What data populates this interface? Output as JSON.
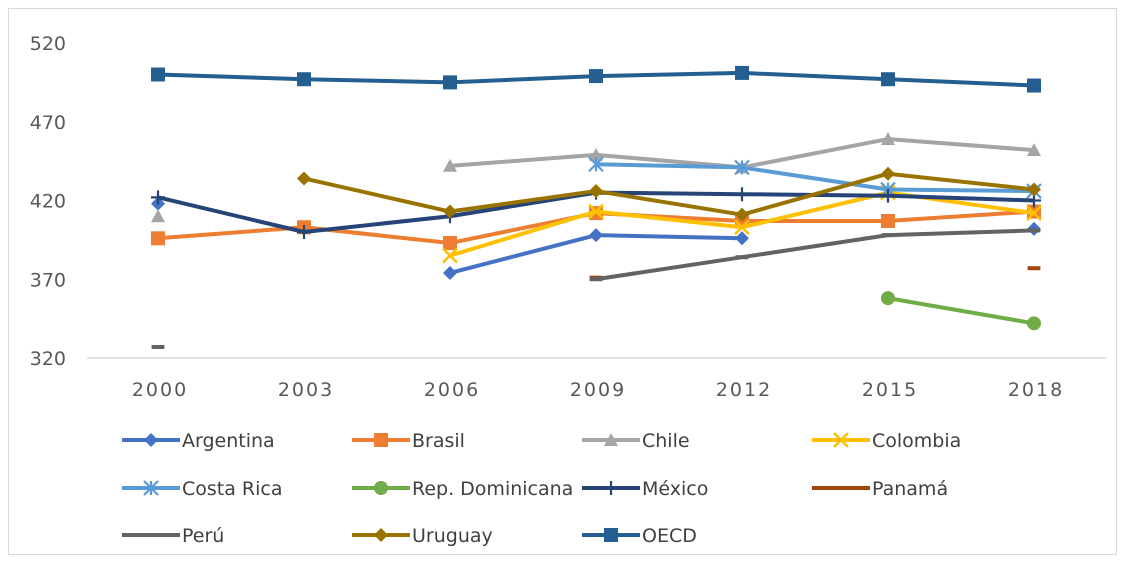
{
  "chart_data": {
    "type": "line",
    "title": "",
    "xlabel": "",
    "ylabel": "",
    "categories": [
      "2000",
      "2003",
      "2006",
      "2009",
      "2012",
      "2015",
      "2018"
    ],
    "ylim": [
      320,
      520
    ],
    "yticks": [
      "320",
      "370",
      "420",
      "470",
      "520"
    ],
    "grid": false,
    "legend_position": "bottom",
    "series": [
      {
        "name": "Argentina",
        "color": "#4472C4",
        "marker": "diamond",
        "values": [
          418,
          null,
          374,
          398,
          396,
          null,
          402
        ]
      },
      {
        "name": "Brasil",
        "color": "#ED7D31",
        "marker": "square",
        "values": [
          396,
          403,
          393,
          412,
          407,
          407,
          413
        ]
      },
      {
        "name": "Chile",
        "color": "#A5A5A5",
        "marker": "triangle",
        "values": [
          410,
          null,
          442,
          449,
          441,
          459,
          452
        ]
      },
      {
        "name": "Colombia",
        "color": "#FFC000",
        "marker": "x",
        "values": [
          null,
          null,
          385,
          413,
          403,
          425,
          412
        ]
      },
      {
        "name": "Costa Rica",
        "color": "#5B9BD5",
        "marker": "star",
        "values": [
          null,
          null,
          null,
          443,
          441,
          427,
          426
        ]
      },
      {
        "name": "Rep. Dominicana",
        "color": "#70AD47",
        "marker": "circle",
        "values": [
          null,
          null,
          null,
          null,
          null,
          358,
          342
        ]
      },
      {
        "name": "México",
        "color": "#264478",
        "marker": "plus",
        "values": [
          422,
          400,
          410,
          425,
          424,
          423,
          420
        ]
      },
      {
        "name": "Panamá",
        "color": "#9E480E",
        "marker": "dash",
        "values": [
          null,
          null,
          null,
          371,
          null,
          null,
          377
        ]
      },
      {
        "name": "Perú",
        "color": "#636363",
        "marker": "dash",
        "values": [
          327,
          null,
          null,
          370,
          384,
          398,
          401
        ]
      },
      {
        "name": "Uruguay",
        "color": "#997300",
        "marker": "diamond",
        "values": [
          null,
          434,
          413,
          426,
          411,
          437,
          427
        ]
      },
      {
        "name": "OECD",
        "color": "#255E91",
        "marker": "square",
        "values": [
          500,
          497,
          495,
          499,
          501,
          497,
          493
        ]
      }
    ]
  }
}
